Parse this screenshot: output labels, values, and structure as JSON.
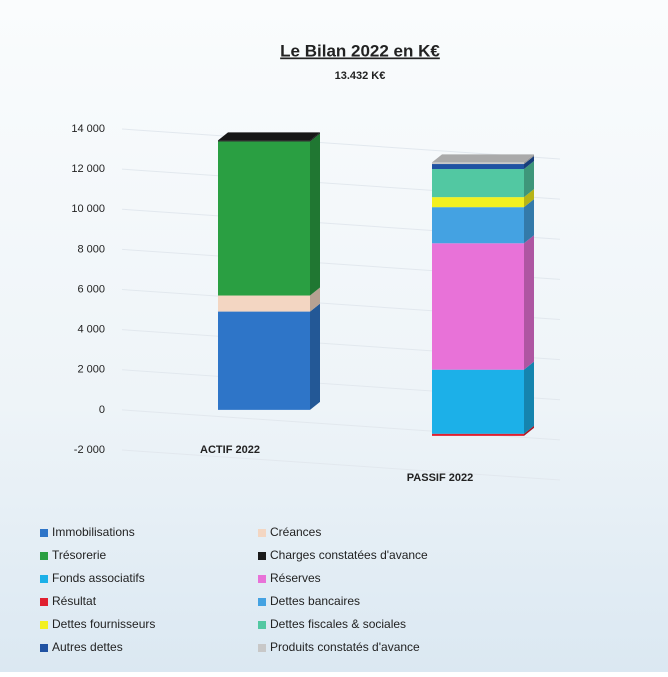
{
  "chart_data": {
    "type": "bar",
    "stacked": true,
    "title": "Le Bilan 2022 en K€",
    "subtitle": "13.432 K€",
    "categories": [
      "ACTIF 2022",
      "PASSIF 2022"
    ],
    "series": [
      {
        "name": "Immobilisations",
        "color": "#2e75c8",
        "values": [
          4900,
          null
        ]
      },
      {
        "name": "Créances",
        "color": "#f3d6c2",
        "values": [
          800,
          null
        ]
      },
      {
        "name": "Trésorerie",
        "color": "#2a9f42",
        "values": [
          7680,
          null
        ]
      },
      {
        "name": "Charges constatées d'avance",
        "color": "#1a1a1a",
        "values": [
          52,
          null
        ]
      },
      {
        "name": "Fonds associatifs",
        "color": "#1cb0e8",
        "values": [
          null,
          3200
        ]
      },
      {
        "name": "Réserves",
        "color": "#e872d8",
        "values": [
          null,
          6300
        ]
      },
      {
        "name": "Résultat",
        "color": "#e02030",
        "values": [
          null,
          -100
        ]
      },
      {
        "name": "Dettes bancaires",
        "color": "#44a2e2",
        "values": [
          null,
          1800
        ]
      },
      {
        "name": "Dettes fournisseurs",
        "color": "#f2f020",
        "values": [
          null,
          500
        ]
      },
      {
        "name": "Dettes fiscales & sociales",
        "color": "#52c8a2",
        "values": [
          null,
          1400
        ]
      },
      {
        "name": "Autres dettes",
        "color": "#2052a2",
        "values": [
          null,
          250
        ]
      },
      {
        "name": "Produits constatés d'avance",
        "color": "#c8c8c8",
        "values": [
          null,
          82
        ]
      }
    ],
    "ylim": [
      -2000,
      14000
    ],
    "yticks": [
      {
        "value": -2000,
        "label": "-2 000"
      },
      0,
      {
        "value": 2000,
        "label": "2 000"
      },
      {
        "value": 4000,
        "label": "4 000"
      },
      {
        "value": 6000,
        "label": "6 000"
      },
      {
        "value": 8000,
        "label": "8 000"
      },
      {
        "value": 10000,
        "label": "10 000"
      },
      {
        "value": 12000,
        "label": "12 000"
      },
      {
        "value": 14000,
        "label": "14 000"
      }
    ],
    "grid": true
  }
}
